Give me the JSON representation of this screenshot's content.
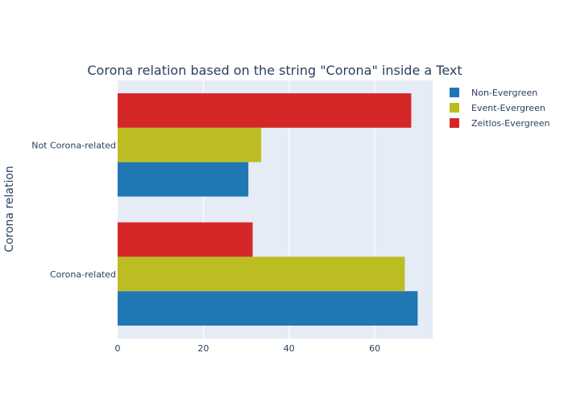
{
  "chart_data": {
    "type": "bar",
    "orientation": "horizontal",
    "title": "Corona relation based on the string \"Corona\" inside a Text",
    "xlabel": "",
    "ylabel": "Corona relation",
    "categories": [
      "Corona-related",
      "Not Corona-related"
    ],
    "xlim": [
      0,
      73.5
    ],
    "xticks": [
      0,
      20,
      40,
      60
    ],
    "grid": true,
    "legend_position": "top-right",
    "series": [
      {
        "name": "Non-Evergreen",
        "color": "#1f77b4",
        "values": [
          70,
          30.5
        ]
      },
      {
        "name": "Event-Evergreen",
        "color": "#bcbd22",
        "values": [
          67,
          33.5
        ]
      },
      {
        "name": "Zeitlos-Evergreen",
        "color": "#d62728",
        "values": [
          31.5,
          68.5
        ]
      }
    ]
  }
}
